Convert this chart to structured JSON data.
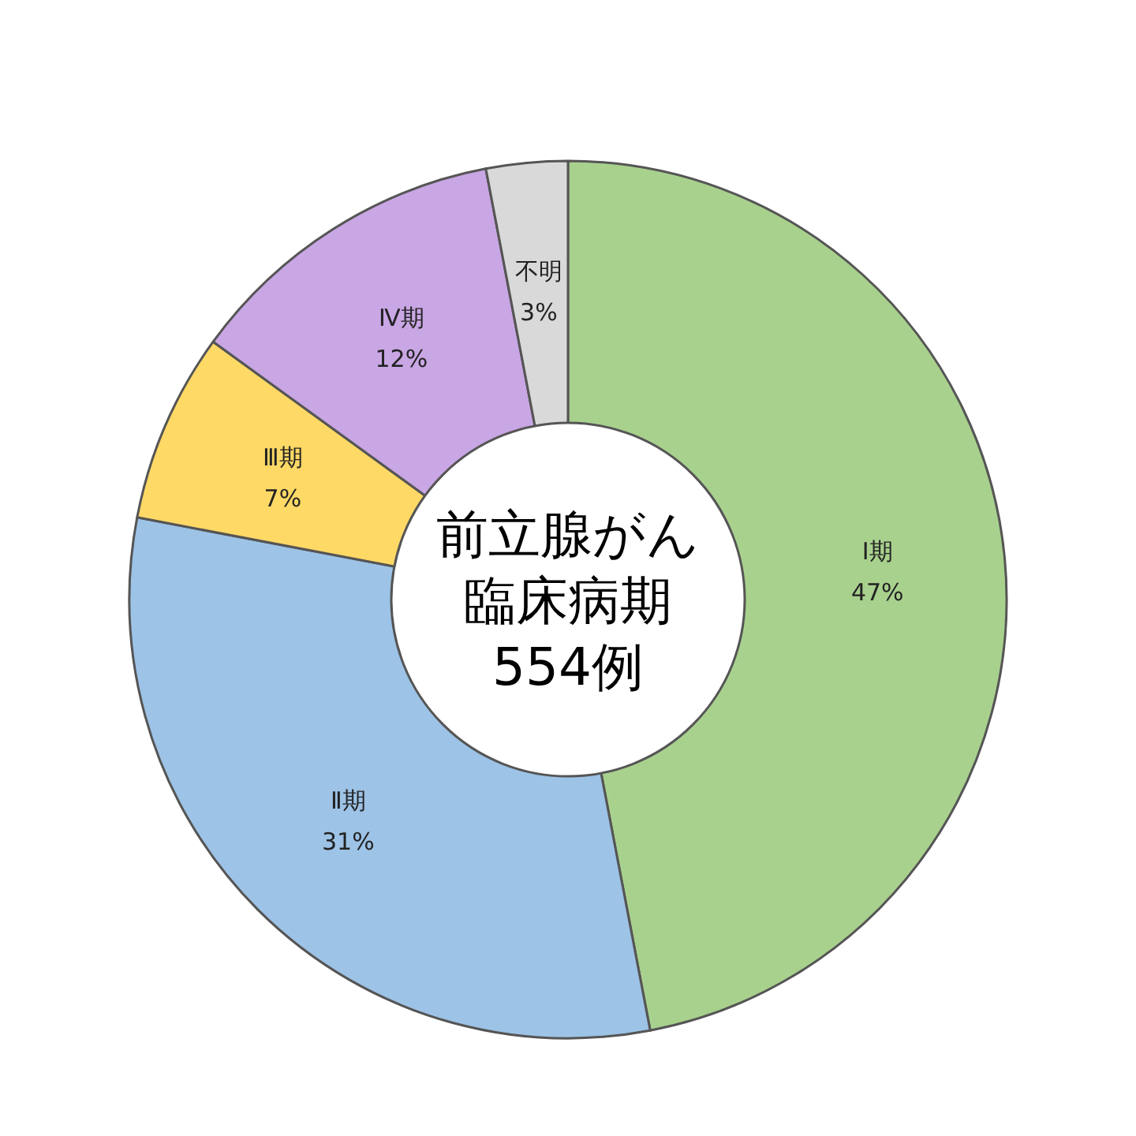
{
  "chart_data": {
    "type": "donut",
    "title": "前立腺がん",
    "subtitle": "臨床病期",
    "annotations": [
      "554例"
    ],
    "categories": [
      "Ⅰ期",
      "Ⅱ期",
      "Ⅲ期",
      "Ⅳ期",
      "不明"
    ],
    "values": [
      47,
      31,
      7,
      12,
      3
    ],
    "colors": [
      "#a9d18e",
      "#9dc3e6",
      "#ffd966",
      "#c9a6e4",
      "#d9d9d9"
    ],
    "value_labels": [
      "47%",
      "31%",
      "7%",
      "12%",
      "3%"
    ]
  }
}
